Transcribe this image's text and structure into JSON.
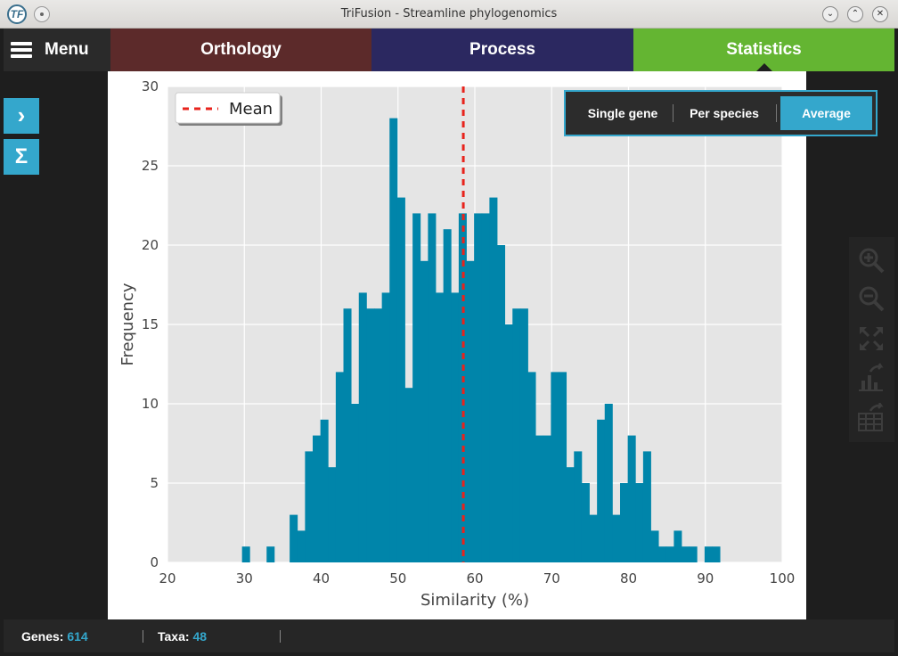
{
  "window": {
    "title": "TriFusion - Streamline phylogenomics",
    "logo": "TF"
  },
  "nav": {
    "menu_label": "Menu",
    "tabs": [
      {
        "label": "Orthology",
        "color": "#5c2a2a"
      },
      {
        "label": "Process",
        "color": "#2b2860"
      },
      {
        "label": "Statistics",
        "color": "#64b532",
        "active": true
      }
    ]
  },
  "side_buttons": [
    {
      "icon": "chevron-right-icon",
      "glyph": "›"
    },
    {
      "icon": "sigma-icon",
      "glyph": "Σ"
    }
  ],
  "toggles": [
    {
      "label": "Single gene",
      "active": false
    },
    {
      "label": "Per species",
      "active": false
    },
    {
      "label": "Average",
      "active": true
    }
  ],
  "tools": [
    "zoom-in-icon",
    "zoom-out-icon",
    "fit-icon",
    "export-graph-icon",
    "export-table-icon"
  ],
  "status": {
    "genes_label": "Genes:",
    "genes_value": "614",
    "taxa_label": "Taxa:",
    "taxa_value": "48"
  },
  "chart_data": {
    "type": "bar",
    "xlabel": "Similarity (%)",
    "ylabel": "Frequency",
    "xlim": [
      20,
      100
    ],
    "ylim": [
      0,
      30
    ],
    "xticks": [
      20,
      30,
      40,
      50,
      60,
      70,
      80,
      90,
      100
    ],
    "yticks": [
      0,
      5,
      10,
      15,
      20,
      25,
      30
    ],
    "grid": true,
    "bar_color": "#0085aa",
    "bin_width": 1,
    "bins": [
      [
        29.7,
        1
      ],
      [
        32.9,
        1
      ],
      [
        35.9,
        3
      ],
      [
        36.9,
        2
      ],
      [
        37.9,
        7
      ],
      [
        38.9,
        8
      ],
      [
        39.9,
        9
      ],
      [
        40.9,
        6
      ],
      [
        41.9,
        12
      ],
      [
        42.9,
        16
      ],
      [
        43.9,
        10
      ],
      [
        44.9,
        17
      ],
      [
        45.9,
        16
      ],
      [
        46.9,
        16
      ],
      [
        47.9,
        17
      ],
      [
        48.9,
        28
      ],
      [
        49.9,
        23
      ],
      [
        50.9,
        11
      ],
      [
        51.9,
        22
      ],
      [
        52.9,
        19
      ],
      [
        53.9,
        22
      ],
      [
        54.9,
        17
      ],
      [
        55.9,
        21
      ],
      [
        56.9,
        17
      ],
      [
        57.9,
        22
      ],
      [
        58.9,
        19
      ],
      [
        59.9,
        22
      ],
      [
        60.9,
        22
      ],
      [
        61.9,
        23
      ],
      [
        62.9,
        20
      ],
      [
        63.9,
        15
      ],
      [
        64.9,
        16
      ],
      [
        65.9,
        16
      ],
      [
        66.9,
        12
      ],
      [
        67.9,
        8
      ],
      [
        68.9,
        8
      ],
      [
        69.9,
        12
      ],
      [
        70.9,
        12
      ],
      [
        71.9,
        6
      ],
      [
        72.9,
        7
      ],
      [
        73.9,
        5
      ],
      [
        74.9,
        3
      ],
      [
        75.9,
        9
      ],
      [
        76.9,
        10
      ],
      [
        77.9,
        3
      ],
      [
        78.9,
        5
      ],
      [
        79.9,
        8
      ],
      [
        80.9,
        5
      ],
      [
        81.9,
        7
      ],
      [
        82.9,
        2
      ],
      [
        83.9,
        1
      ],
      [
        84.9,
        1
      ],
      [
        85.9,
        2
      ],
      [
        86.9,
        1
      ],
      [
        87.9,
        1
      ],
      [
        89.9,
        1
      ],
      [
        90.9,
        1
      ]
    ],
    "mean": 58.5,
    "mean_line_color": "#e8231c",
    "legend": {
      "label": "Mean",
      "position": "top-left"
    }
  }
}
